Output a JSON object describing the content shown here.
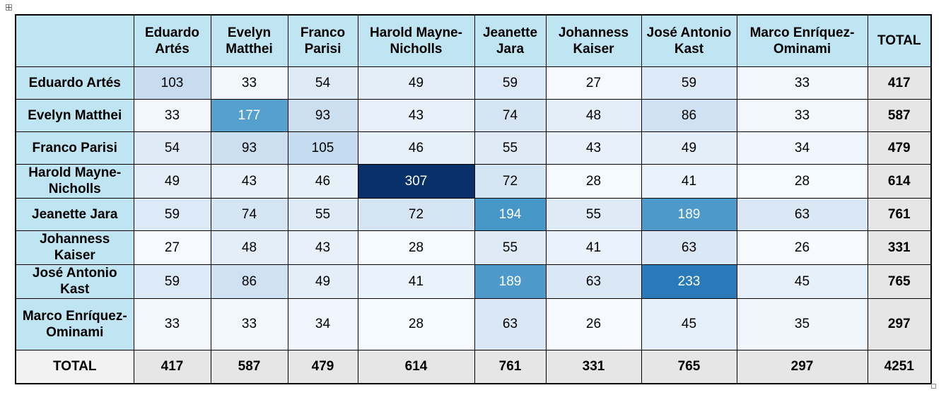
{
  "table": {
    "corner": "",
    "columns": [
      "Eduardo Artés",
      "Evelyn Matthei",
      "Franco Parisi",
      "Harold Mayne-Nicholls",
      "Jeanette Jara",
      "Johanness Kaiser",
      "José Antonio Kast",
      "Marco Enríquez-Ominami"
    ],
    "total_label": "TOTAL",
    "rows": [
      {
        "label": "Eduardo Artés",
        "values": [
          103,
          33,
          54,
          49,
          59,
          27,
          59,
          33
        ],
        "total": 417
      },
      {
        "label": "Evelyn Matthei",
        "values": [
          33,
          177,
          93,
          43,
          74,
          48,
          86,
          33
        ],
        "total": 587
      },
      {
        "label": "Franco Parisi",
        "values": [
          54,
          93,
          105,
          46,
          55,
          43,
          49,
          34
        ],
        "total": 479
      },
      {
        "label": "Harold Mayne-Nicholls",
        "values": [
          49,
          43,
          46,
          307,
          72,
          28,
          41,
          28
        ],
        "total": 614
      },
      {
        "label": "Jeanette Jara",
        "values": [
          59,
          74,
          55,
          72,
          194,
          55,
          189,
          63
        ],
        "total": 761
      },
      {
        "label": "Johanness Kaiser",
        "values": [
          27,
          48,
          43,
          28,
          55,
          41,
          63,
          26
        ],
        "total": 331
      },
      {
        "label": "José Antonio Kast",
        "values": [
          59,
          86,
          49,
          41,
          189,
          63,
          233,
          45
        ],
        "total": 765
      },
      {
        "label": "Marco Enríquez-Ominami",
        "values": [
          33,
          33,
          34,
          28,
          63,
          26,
          45,
          35
        ],
        "total": 297
      }
    ],
    "footer": {
      "label": "TOTAL",
      "values": [
        417,
        587,
        479,
        614,
        761,
        331,
        765,
        297
      ],
      "grand_total": 4251
    }
  }
}
